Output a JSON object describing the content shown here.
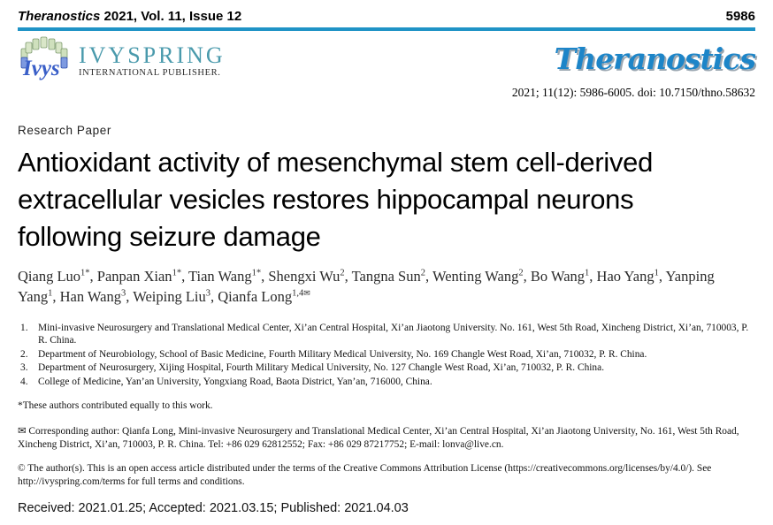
{
  "page": {
    "journal_name": "Theranostics",
    "journal_ref_rest": " 2021, Vol. 11, Issue 12",
    "page_number": "5986"
  },
  "publisher_logo": {
    "mark_text": "Ivys",
    "name": "IVYSPRING",
    "subtitle": "INTERNATIONAL PUBLISHER."
  },
  "journal_logo": {
    "text": "Theranostics"
  },
  "citation": "2021; 11(12): 5986-6005. doi: 10.7150/thno.58632",
  "icons": {
    "envelope": "✉"
  },
  "colors": {
    "rule": "#1f93c6",
    "publisher_teal": "#4a9aac",
    "journal_blue": "#1d85c8"
  },
  "article": {
    "type_label": "Research Paper",
    "title_lines": [
      "Antioxidant activity of mesenchymal stem cell-derived",
      "extracellular vesicles restores hippocampal neurons",
      "following seizure damage"
    ],
    "authors": [
      {
        "name": "Qiang Luo",
        "sup": "1*"
      },
      {
        "name": "Panpan Xian",
        "sup": "1*"
      },
      {
        "name": "Tian Wang",
        "sup": "1*"
      },
      {
        "name": "Shengxi Wu",
        "sup": "2"
      },
      {
        "name": "Tangna Sun",
        "sup": "2"
      },
      {
        "name": "Wenting Wang",
        "sup": "2"
      },
      {
        "name": "Bo Wang",
        "sup": "1"
      },
      {
        "name": "Hao Yang",
        "sup": "1"
      },
      {
        "name": "Yanping Yang",
        "sup": "1"
      },
      {
        "name": "Han Wang",
        "sup": "3"
      },
      {
        "name": "Weiping Liu",
        "sup": "3"
      },
      {
        "name": "Qianfa Long",
        "sup": "1,4",
        "envelope": true
      }
    ],
    "affiliations": [
      {
        "num": "1.",
        "text": "Mini-invasive Neurosurgery and Translational Medical Center, Xi’an Central Hospital, Xi’an Jiaotong University. No. 161, West 5th Road, Xincheng District, Xi’an, 710003, P. R. China."
      },
      {
        "num": "2.",
        "text": "Department of Neurobiology, School of Basic Medicine, Fourth Military Medical University, No. 169 Changle West Road, Xi’an, 710032, P. R. China."
      },
      {
        "num": "3.",
        "text": "Department of Neurosurgery, Xijing Hospital, Fourth Military Medical University, No. 127 Changle West Road, Xi’an, 710032, P. R. China."
      },
      {
        "num": "4.",
        "text": "College of Medicine, Yan’an University, Yongxiang Road, Baota District, Yan’an, 716000, China."
      }
    ],
    "equal_note": "*These authors contributed equally to this work.",
    "corresponding": " Corresponding author: Qianfa Long, Mini-invasive Neurosurgery and Translational Medical Center, Xi’an Central Hospital, Xi’an Jiaotong University, No. 161, West 5th Road, Xincheng District, Xi’an, 710003, P. R. China. Tel: +86 029 62812552; Fax: +86 029 87217752; E-mail: lonva@live.cn.",
    "copyright": "© The author(s). This is an open access article distributed under the terms of the Creative Commons Attribution License (https://creativecommons.org/licenses/by/4.0/). See http://ivyspring.com/terms for full terms and conditions.",
    "dates": "Received: 2021.01.25; Accepted: 2021.03.15; Published: 2021.04.03"
  }
}
